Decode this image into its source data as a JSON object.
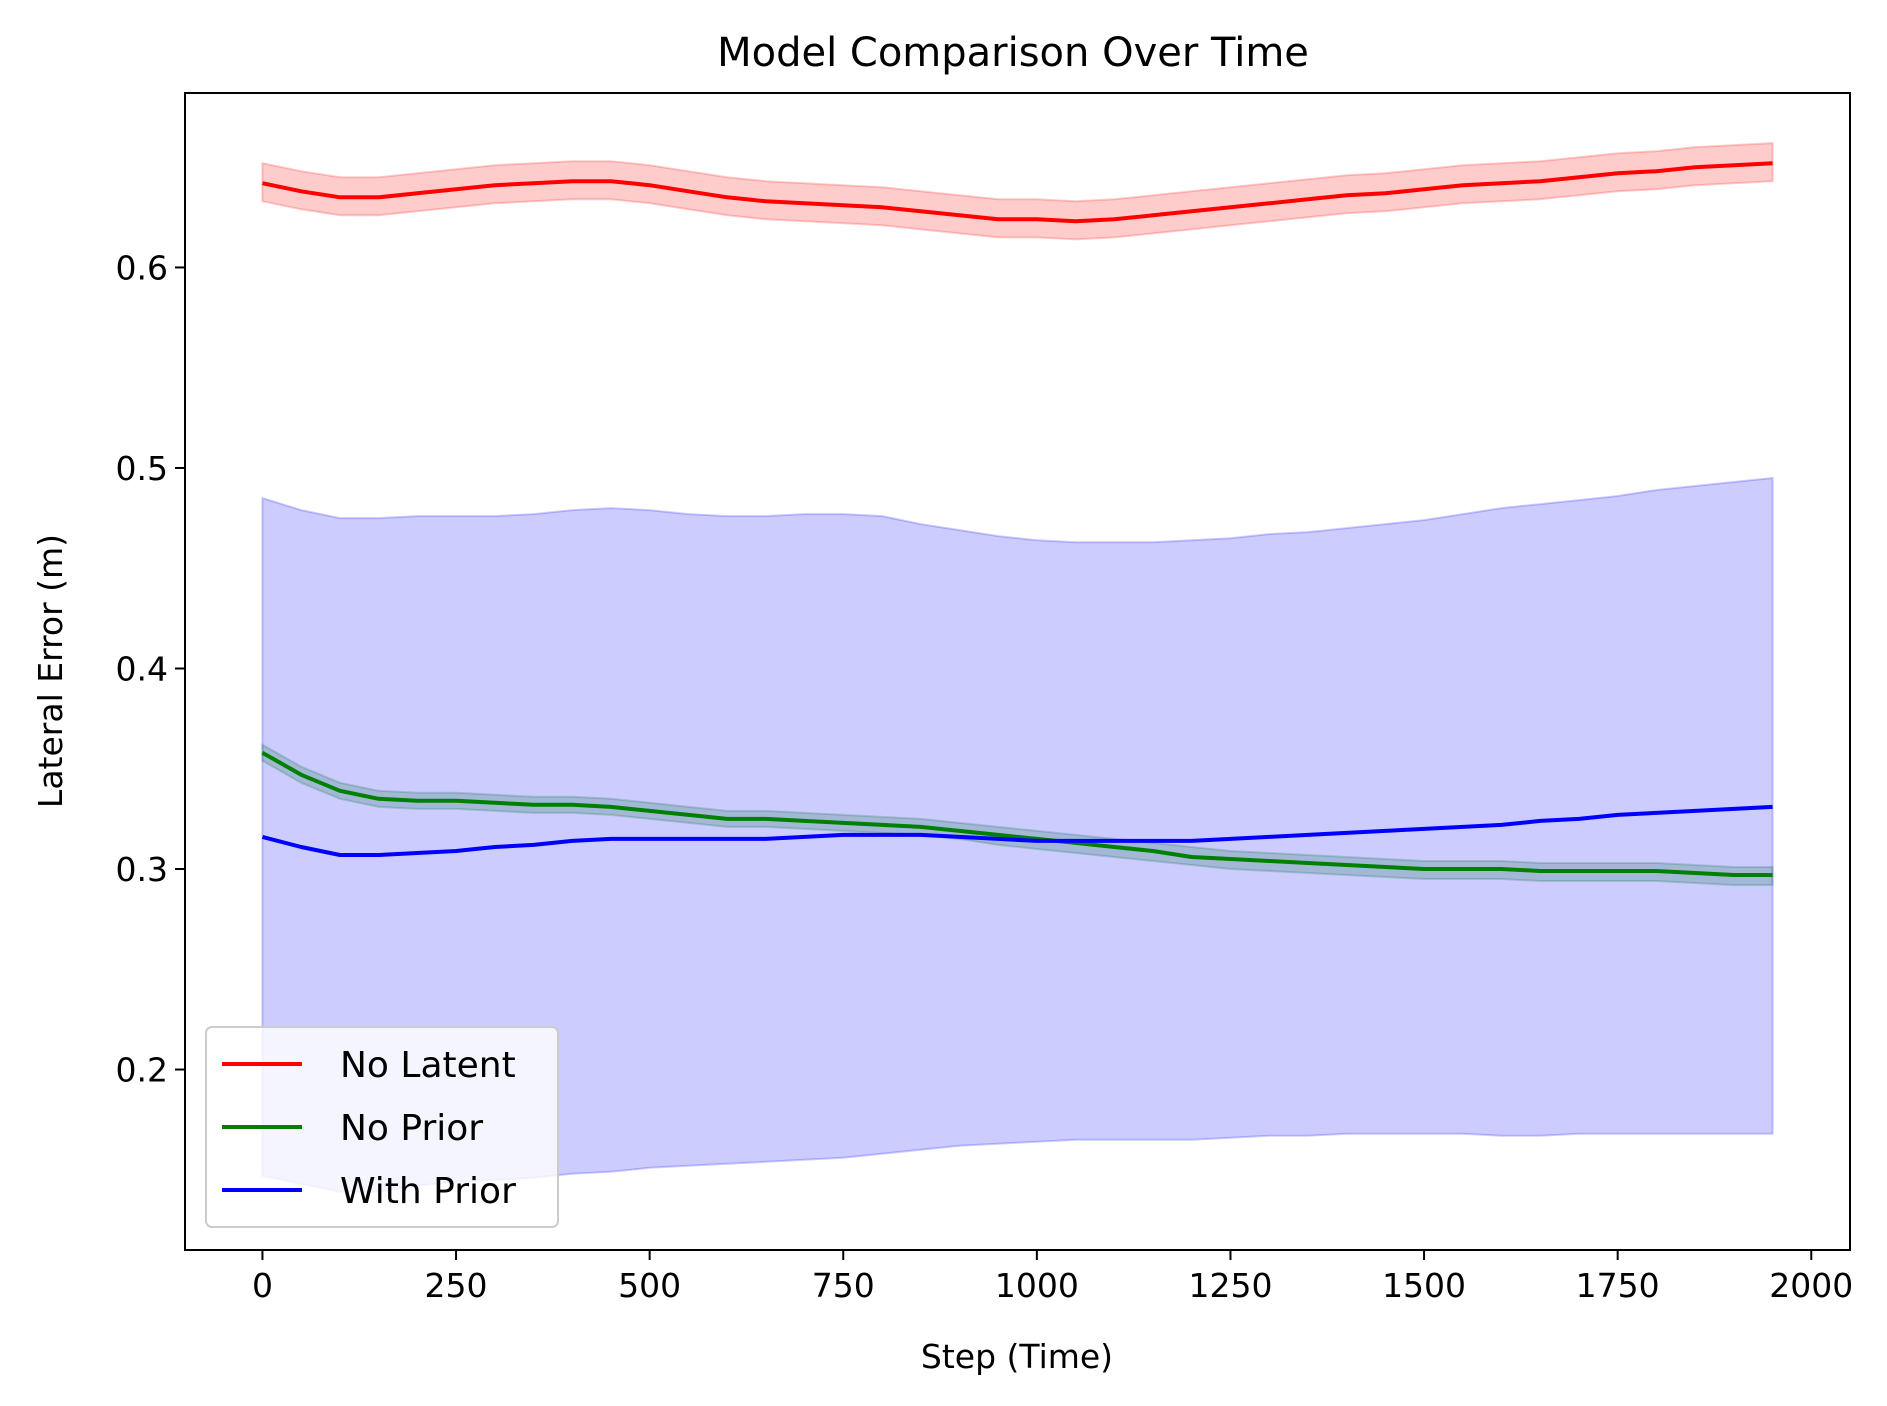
{
  "chart_data": {
    "type": "line",
    "title": "Model Comparison Over Time",
    "xlabel": "Step (Time)",
    "ylabel": "Lateral Error (m)",
    "xlim": [
      -100,
      2050
    ],
    "ylim": [
      0.11,
      0.687
    ],
    "xticks": [
      0,
      250,
      500,
      750,
      1000,
      1250,
      1500,
      1750,
      2000
    ],
    "yticks": [
      0.2,
      0.3,
      0.4,
      0.5,
      0.6
    ],
    "xtick_labels": [
      "0",
      "250",
      "500",
      "750",
      "1000",
      "1250",
      "1500",
      "1750",
      "2000"
    ],
    "ytick_labels": [
      "0.2",
      "0.3",
      "0.4",
      "0.5",
      "0.6"
    ],
    "legend_position": "lower-left",
    "grid": false,
    "x": [
      0,
      50,
      100,
      150,
      200,
      250,
      300,
      350,
      400,
      450,
      500,
      550,
      600,
      650,
      700,
      750,
      800,
      850,
      900,
      950,
      1000,
      1050,
      1100,
      1150,
      1200,
      1250,
      1300,
      1350,
      1400,
      1450,
      1500,
      1550,
      1600,
      1650,
      1700,
      1750,
      1800,
      1850,
      1900,
      1950
    ],
    "series": [
      {
        "name": "No Latent",
        "color": "#ff0000",
        "values": [
          0.642,
          0.638,
          0.635,
          0.635,
          0.637,
          0.639,
          0.641,
          0.642,
          0.643,
          0.643,
          0.641,
          0.638,
          0.635,
          0.633,
          0.632,
          0.631,
          0.63,
          0.628,
          0.626,
          0.624,
          0.624,
          0.623,
          0.624,
          0.626,
          0.628,
          0.63,
          0.632,
          0.634,
          0.636,
          0.637,
          0.639,
          0.641,
          0.642,
          0.643,
          0.645,
          0.647,
          0.648,
          0.65,
          0.651,
          0.652
        ],
        "lower": [
          0.633,
          0.629,
          0.626,
          0.626,
          0.628,
          0.63,
          0.632,
          0.633,
          0.634,
          0.634,
          0.632,
          0.629,
          0.626,
          0.624,
          0.623,
          0.622,
          0.621,
          0.619,
          0.617,
          0.615,
          0.615,
          0.614,
          0.615,
          0.617,
          0.619,
          0.621,
          0.623,
          0.625,
          0.627,
          0.628,
          0.63,
          0.632,
          0.633,
          0.634,
          0.636,
          0.638,
          0.639,
          0.641,
          0.642,
          0.643
        ],
        "upper": [
          0.652,
          0.648,
          0.645,
          0.645,
          0.647,
          0.649,
          0.651,
          0.652,
          0.653,
          0.653,
          0.651,
          0.648,
          0.645,
          0.643,
          0.642,
          0.641,
          0.64,
          0.638,
          0.636,
          0.634,
          0.634,
          0.633,
          0.634,
          0.636,
          0.638,
          0.64,
          0.642,
          0.644,
          0.646,
          0.647,
          0.649,
          0.651,
          0.652,
          0.653,
          0.655,
          0.657,
          0.658,
          0.66,
          0.661,
          0.662
        ]
      },
      {
        "name": "No Prior",
        "color": "#008000",
        "values": [
          0.358,
          0.347,
          0.339,
          0.335,
          0.334,
          0.334,
          0.333,
          0.332,
          0.332,
          0.331,
          0.329,
          0.327,
          0.325,
          0.325,
          0.324,
          0.323,
          0.322,
          0.321,
          0.319,
          0.317,
          0.315,
          0.313,
          0.311,
          0.309,
          0.306,
          0.305,
          0.304,
          0.303,
          0.302,
          0.301,
          0.3,
          0.3,
          0.3,
          0.299,
          0.299,
          0.299,
          0.299,
          0.298,
          0.297,
          0.297
        ],
        "lower": [
          0.354,
          0.343,
          0.335,
          0.331,
          0.33,
          0.33,
          0.329,
          0.328,
          0.328,
          0.327,
          0.325,
          0.323,
          0.321,
          0.321,
          0.32,
          0.319,
          0.318,
          0.317,
          0.315,
          0.312,
          0.31,
          0.308,
          0.306,
          0.304,
          0.302,
          0.3,
          0.299,
          0.298,
          0.297,
          0.296,
          0.295,
          0.295,
          0.295,
          0.294,
          0.294,
          0.294,
          0.294,
          0.293,
          0.292,
          0.292
        ],
        "upper": [
          0.362,
          0.351,
          0.343,
          0.339,
          0.338,
          0.338,
          0.337,
          0.336,
          0.336,
          0.335,
          0.333,
          0.331,
          0.329,
          0.329,
          0.328,
          0.327,
          0.326,
          0.325,
          0.323,
          0.321,
          0.319,
          0.317,
          0.315,
          0.313,
          0.311,
          0.309,
          0.308,
          0.307,
          0.306,
          0.305,
          0.304,
          0.304,
          0.304,
          0.303,
          0.303,
          0.303,
          0.303,
          0.302,
          0.301,
          0.301
        ]
      },
      {
        "name": "With Prior",
        "color": "#0000ff",
        "values": [
          0.316,
          0.311,
          0.307,
          0.307,
          0.308,
          0.309,
          0.311,
          0.312,
          0.314,
          0.315,
          0.315,
          0.315,
          0.315,
          0.315,
          0.316,
          0.317,
          0.317,
          0.317,
          0.316,
          0.315,
          0.314,
          0.314,
          0.314,
          0.314,
          0.314,
          0.315,
          0.316,
          0.317,
          0.318,
          0.319,
          0.32,
          0.321,
          0.322,
          0.324,
          0.325,
          0.327,
          0.328,
          0.329,
          0.33,
          0.331
        ],
        "lower": [
          0.147,
          0.143,
          0.139,
          0.139,
          0.142,
          0.144,
          0.145,
          0.146,
          0.148,
          0.149,
          0.151,
          0.152,
          0.153,
          0.154,
          0.155,
          0.156,
          0.158,
          0.16,
          0.162,
          0.163,
          0.164,
          0.165,
          0.165,
          0.165,
          0.165,
          0.166,
          0.167,
          0.167,
          0.168,
          0.168,
          0.168,
          0.168,
          0.167,
          0.167,
          0.168,
          0.168,
          0.168,
          0.168,
          0.168,
          0.168
        ],
        "upper": [
          0.485,
          0.479,
          0.475,
          0.475,
          0.476,
          0.476,
          0.476,
          0.477,
          0.479,
          0.48,
          0.479,
          0.477,
          0.476,
          0.476,
          0.477,
          0.477,
          0.476,
          0.472,
          0.469,
          0.466,
          0.464,
          0.463,
          0.463,
          0.463,
          0.464,
          0.465,
          0.467,
          0.468,
          0.47,
          0.472,
          0.474,
          0.477,
          0.48,
          0.482,
          0.484,
          0.486,
          0.489,
          0.491,
          0.493,
          0.495
        ]
      }
    ]
  }
}
